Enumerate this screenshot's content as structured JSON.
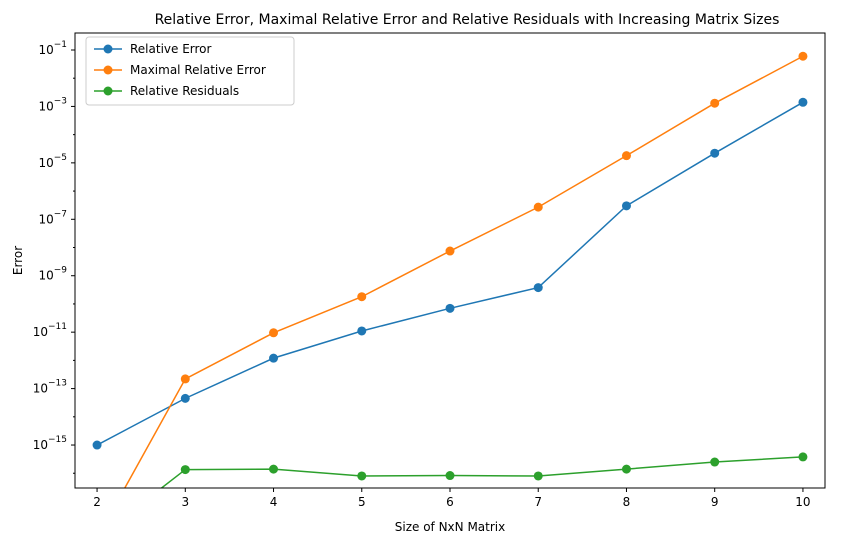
{
  "chart_data": {
    "type": "line",
    "title": "Relative Error, Maximal Relative Error and Relative Residuals with Increasing Matrix Sizes",
    "xlabel": "Size of NxN Matrix",
    "ylabel": "Error",
    "yscale": "log",
    "xlim": [
      1.75,
      10.25
    ],
    "ylim": [
      3e-17,
      0.4
    ],
    "xticks": [
      2,
      3,
      4,
      5,
      6,
      7,
      8,
      9,
      10
    ],
    "yticks": [
      {
        "exp": -15,
        "base": "10",
        "sup": "−15"
      },
      {
        "exp": -13,
        "base": "10",
        "sup": "−13"
      },
      {
        "exp": -11,
        "base": "10",
        "sup": "−11"
      },
      {
        "exp": -9,
        "base": "10",
        "sup": "−9"
      },
      {
        "exp": -7,
        "base": "10",
        "sup": "−7"
      },
      {
        "exp": -5,
        "base": "10",
        "sup": "−5"
      },
      {
        "exp": -3,
        "base": "10",
        "sup": "−3"
      },
      {
        "exp": -1,
        "base": "10",
        "sup": "−1"
      }
    ],
    "grid": false,
    "legend_position": "top-left",
    "series": [
      {
        "name": "Relative Error",
        "color": "#1f77b4",
        "x": [
          2,
          3,
          4,
          5,
          6,
          7,
          8,
          9,
          10
        ],
        "y": [
          1e-15,
          4.5e-14,
          1.2e-12,
          1.1e-11,
          7e-11,
          3.8e-10,
          3e-07,
          2.2e-05,
          0.0014
        ]
      },
      {
        "name": "Maximal Relative Error",
        "color": "#ff7f0e",
        "x": [
          2,
          3,
          4,
          5,
          6,
          7,
          8,
          9,
          10
        ],
        "y": [
          0,
          2.2e-13,
          9.5e-12,
          1.8e-10,
          7.5e-09,
          2.7e-07,
          1.8e-05,
          0.0013,
          0.06
        ]
      },
      {
        "name": "Relative Residuals",
        "color": "#2ca02c",
        "x": [
          2,
          3,
          4,
          5,
          6,
          7,
          8,
          9,
          10
        ],
        "y": [
          0,
          1.35e-16,
          1.4e-16,
          8e-17,
          8.3e-17,
          8e-17,
          1.4e-16,
          2.5e-16,
          3.8e-16
        ]
      }
    ]
  }
}
